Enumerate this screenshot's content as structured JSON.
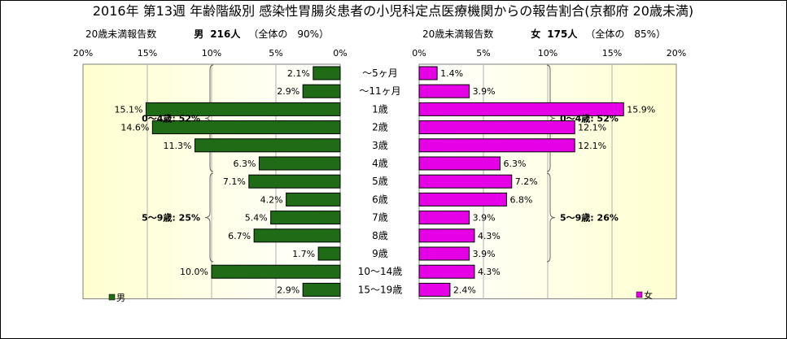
{
  "title": "2016年 第13週 年齢階級別 感染性胃腸炎患者の小児科定点医療機関からの報告割合(京都府 20歳未満)",
  "chart_data": [
    {
      "type": "bar",
      "orientation": "horizontal",
      "direction": "right-to-left",
      "header": {
        "subtitle": "20歳未満報告数",
        "sex": "男",
        "count": "216人",
        "share": "（全体の　90%）"
      },
      "legend": "男",
      "xlim": [
        0,
        20
      ],
      "xticks": [
        "0%",
        "5%",
        "10%",
        "15%",
        "20%"
      ],
      "color": "#1f6b16",
      "categories": [
        "～5ヶ月",
        "～11ヶ月",
        "1歳",
        "2歳",
        "3歳",
        "4歳",
        "5歳",
        "6歳",
        "7歳",
        "8歳",
        "9歳",
        "10～14歳",
        "15～19歳"
      ],
      "values": [
        2.1,
        2.9,
        15.1,
        14.6,
        11.3,
        6.3,
        7.1,
        4.2,
        5.4,
        6.7,
        1.7,
        10.0,
        2.9
      ],
      "labels": [
        "2.1%",
        "2.9%",
        "15.1%",
        "14.6%",
        "11.3%",
        "6.3%",
        "7.1%",
        "4.2%",
        "5.4%",
        "6.7%",
        "1.7%",
        "10.0%",
        "2.9%"
      ],
      "annotations": [
        {
          "text": "0～4歳: 52%",
          "from": 0,
          "to": 5
        },
        {
          "text": "5～9歳: 25%",
          "from": 6,
          "to": 10
        }
      ]
    },
    {
      "type": "bar",
      "orientation": "horizontal",
      "direction": "left-to-right",
      "header": {
        "subtitle": "20歳未満報告数",
        "sex": "女",
        "count": "175人",
        "share": "（全体の　85%）"
      },
      "legend": "女",
      "xlim": [
        0,
        20
      ],
      "xticks": [
        "0%",
        "5%",
        "10%",
        "15%",
        "20%"
      ],
      "color": "#e600e6",
      "categories": [
        "～5ヶ月",
        "～11ヶ月",
        "1歳",
        "2歳",
        "3歳",
        "4歳",
        "5歳",
        "6歳",
        "7歳",
        "8歳",
        "9歳",
        "10～14歳",
        "15～19歳"
      ],
      "values": [
        1.4,
        3.9,
        15.9,
        12.1,
        12.1,
        6.3,
        7.2,
        6.8,
        3.9,
        4.3,
        3.9,
        4.3,
        2.4
      ],
      "labels": [
        "1.4%",
        "3.9%",
        "15.9%",
        "12.1%",
        "12.1%",
        "6.3%",
        "7.2%",
        "6.8%",
        "3.9%",
        "4.3%",
        "3.9%",
        "4.3%",
        "2.4%"
      ],
      "annotations": [
        {
          "text": "0～4歳: 52%",
          "from": 0,
          "to": 5
        },
        {
          "text": "5～9歳: 26%",
          "from": 6,
          "to": 10
        }
      ]
    }
  ]
}
